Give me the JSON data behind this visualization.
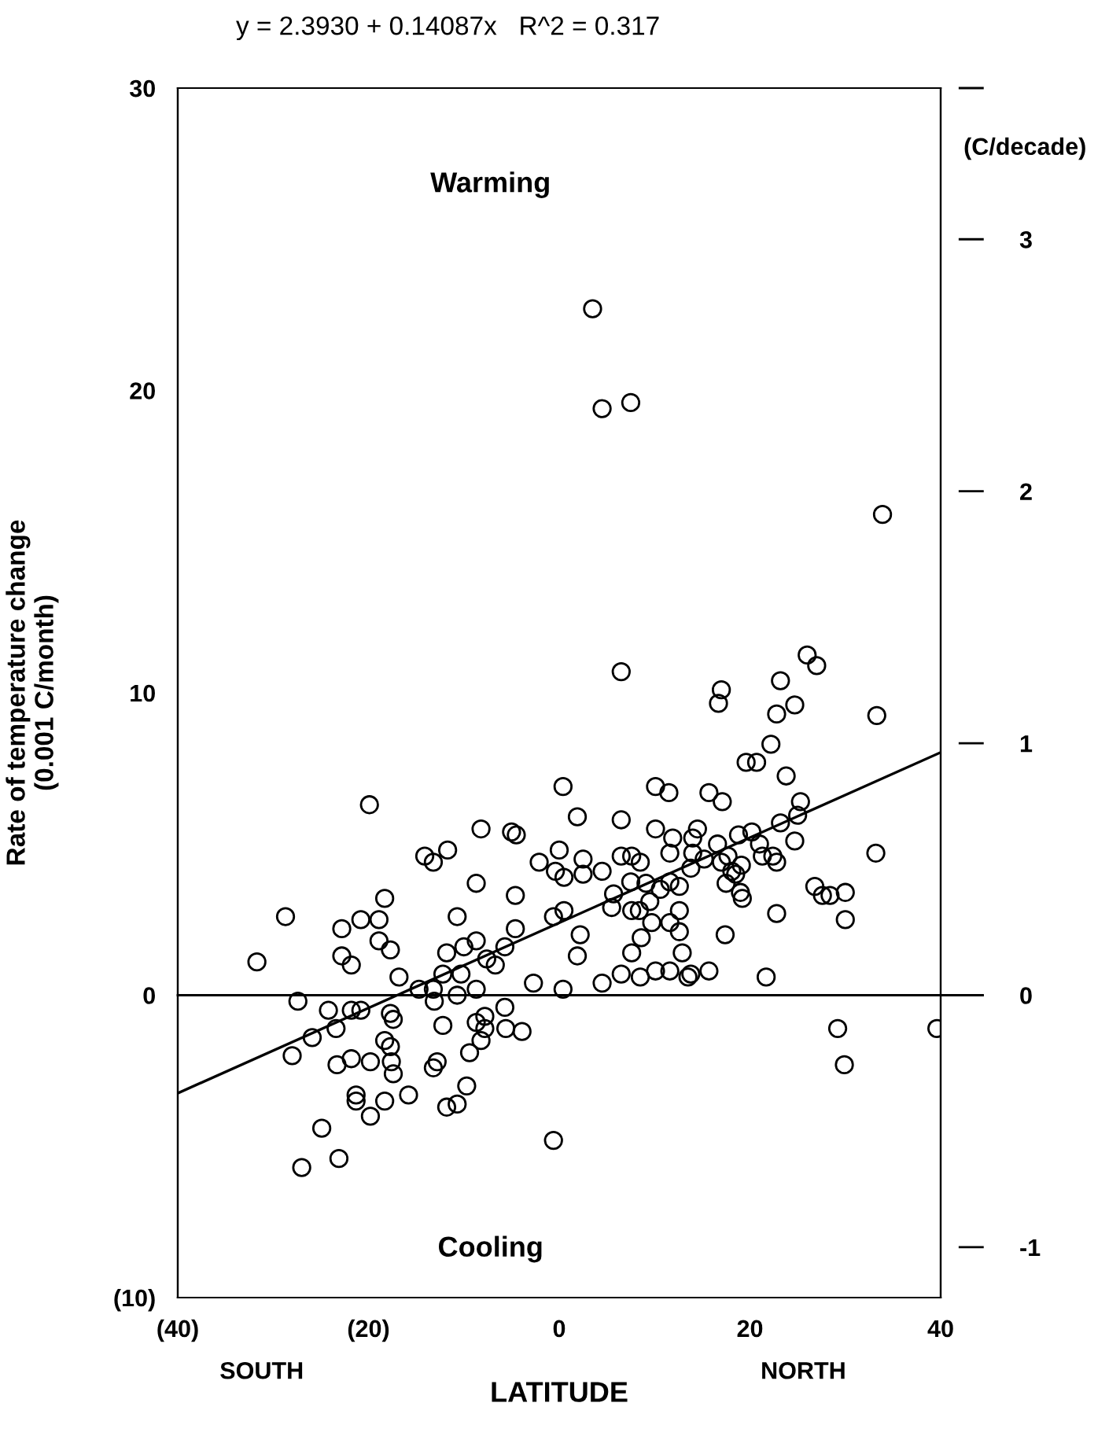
{
  "chart_data": {
    "type": "scatter",
    "title": "y = 2.3930 + 0.14087x   R^2 = 0.317",
    "xlabel": "LATITUDE",
    "ylabel": "Rate of temperature change\n(0.001 C/month)",
    "y2label": "(C/decade)",
    "annotations": [
      "Warming",
      "Cooling",
      "SOUTH",
      "NORTH"
    ],
    "xlim": [
      -40,
      40
    ],
    "xticks": [
      {
        "value": -40,
        "label": "(40)"
      },
      {
        "value": -20,
        "label": "(20)"
      },
      0,
      20,
      40
    ],
    "ylim": [
      -10,
      30
    ],
    "yticks": [
      {
        "value": -10,
        "label": "(10)"
      },
      0,
      10,
      20,
      30
    ],
    "y2lim": [
      -1.2,
      3.6
    ],
    "y2ticks": [
      -1,
      0,
      1,
      2,
      3,
      {
        "value": 3.6,
        "label": null
      }
    ],
    "grid": false,
    "legend": false,
    "ref_lines": [
      {
        "axis": "y",
        "value": 0,
        "color": "#000000"
      }
    ],
    "series": [
      {
        "color": "#000000",
        "marker": "circle",
        "x": [
          -31.7,
          -28.7,
          -27.4,
          -28.0,
          -25.9,
          -24.9,
          -27.0,
          -23.1,
          -24.2,
          -23.4,
          -22.8,
          -22.8,
          -21.8,
          -20.8,
          -18.9,
          -18.3,
          -18.9,
          -17.7,
          -21.8,
          -20.8,
          -23.3,
          -21.8,
          -19.8,
          -17.7,
          -17.4,
          -18.3,
          -17.7,
          -17.6,
          -17.4,
          -21.3,
          -21.3,
          -18.3,
          -19.8,
          -15.8,
          -16.8,
          -14.7,
          -13.2,
          -13.1,
          -12.2,
          -10.3,
          -10.7,
          -8.7,
          -12.2,
          -8.7,
          -7.8,
          -7.8,
          -5.6,
          -3.9,
          -5.7,
          -8.2,
          -9.4,
          -12.8,
          -13.2,
          -9.7,
          -10.7,
          -11.8,
          -0.6,
          -11.8,
          -10.0,
          -8.7,
          -7.6,
          -6.7,
          -5.7,
          -4.6,
          -4.6,
          -2.7,
          0.4,
          -10.7,
          -8.7,
          -14.1,
          -13.2,
          -11.7,
          -8.2,
          -5.0,
          -4.5,
          0.0,
          -2.1,
          -0.4,
          0.5,
          -0.6,
          0.5,
          -19.9,
          6.5,
          0.4,
          10.1,
          11.5,
          1.9,
          6.5,
          10.1,
          2.5,
          2.5,
          4.5,
          6.5,
          7.6,
          8.5,
          7.5,
          9.1,
          10.6,
          12.6,
          5.7,
          5.5,
          7.6,
          8.4,
          9.5,
          9.7,
          11.6,
          12.6,
          12.6,
          8.6,
          7.6,
          2.2,
          1.9,
          4.5,
          6.5,
          8.5,
          10.1,
          11.6,
          12.9,
          13.5,
          26.0,
          27.0,
          23.2,
          17.0,
          16.7,
          24.7,
          22.8,
          33.3,
          22.2,
          19.6,
          20.7,
          23.8,
          15.7,
          17.1,
          25.3,
          25.0,
          23.2,
          14.5,
          20.2,
          18.8,
          24.7,
          33.2,
          11.9,
          14.0,
          16.6,
          21.0,
          11.6,
          14.0,
          15.2,
          17.7,
          19.1,
          21.3,
          22.4,
          22.8,
          17.0,
          18.1,
          18.5,
          13.8,
          11.6,
          17.5,
          19.0,
          19.2,
          26.8,
          27.6,
          28.4,
          30.0,
          30.0,
          22.8,
          17.4,
          13.8,
          15.7,
          21.7,
          3.5,
          4.5,
          7.5,
          33.9,
          29.2,
          29.9,
          39.6
        ],
        "values": [
          1.1,
          2.6,
          -0.2,
          -2.0,
          -1.4,
          -4.4,
          -5.7,
          -5.4,
          -0.5,
          -1.1,
          2.2,
          1.3,
          1.0,
          2.5,
          2.5,
          3.2,
          1.8,
          1.5,
          -0.5,
          -0.5,
          -2.3,
          -2.1,
          -2.2,
          -0.6,
          -0.8,
          -1.5,
          -1.7,
          -2.2,
          -2.6,
          -3.3,
          -3.5,
          -3.5,
          -4.0,
          -3.3,
          0.6,
          0.2,
          0.2,
          -0.2,
          0.7,
          0.7,
          0.0,
          0.2,
          -1.0,
          -0.9,
          -0.7,
          -1.1,
          -1.1,
          -1.2,
          -0.4,
          -1.5,
          -1.9,
          -2.2,
          -2.4,
          -3.0,
          -3.6,
          -3.7,
          -4.8,
          1.4,
          1.6,
          1.8,
          1.2,
          1.0,
          1.6,
          2.2,
          3.3,
          0.4,
          0.2,
          2.6,
          3.7,
          4.6,
          4.4,
          4.8,
          5.5,
          5.4,
          5.3,
          4.8,
          4.4,
          4.1,
          3.9,
          2.6,
          2.8,
          6.3,
          10.7,
          6.9,
          6.9,
          6.7,
          5.9,
          5.8,
          5.5,
          4.5,
          4.0,
          4.1,
          4.6,
          4.6,
          4.4,
          3.75,
          3.7,
          3.5,
          3.6,
          3.35,
          2.9,
          2.8,
          2.8,
          3.1,
          2.4,
          2.4,
          2.8,
          2.1,
          1.9,
          1.4,
          2.0,
          1.3,
          0.4,
          0.7,
          0.6,
          0.8,
          0.8,
          1.4,
          0.6,
          11.25,
          10.9,
          10.4,
          10.1,
          9.65,
          9.6,
          9.3,
          9.25,
          8.3,
          7.7,
          7.7,
          7.25,
          6.7,
          6.4,
          6.4,
          5.95,
          5.7,
          5.5,
          5.4,
          5.3,
          5.1,
          4.7,
          5.2,
          5.2,
          5.0,
          5.0,
          4.7,
          4.7,
          4.5,
          4.6,
          4.3,
          4.6,
          4.6,
          4.4,
          4.4,
          4.1,
          4.0,
          4.2,
          3.75,
          3.7,
          3.4,
          3.2,
          3.6,
          3.3,
          3.3,
          3.4,
          2.5,
          2.7,
          2.0,
          0.7,
          0.8,
          0.6,
          22.7,
          19.4,
          19.6,
          15.9,
          -1.1,
          -2.3,
          -1.1
        ]
      },
      {
        "type": "line",
        "marker": "none",
        "color": "#000000",
        "x": [
          -40,
          40
        ],
        "values": [
          -3.24,
          8.03
        ]
      }
    ]
  }
}
